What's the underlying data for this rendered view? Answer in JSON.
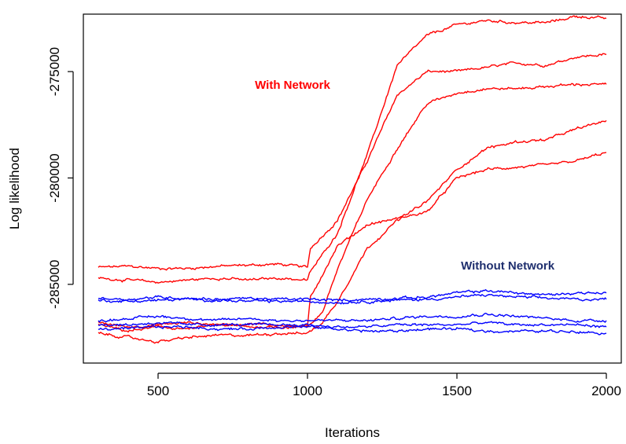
{
  "chart_data": {
    "type": "line",
    "title": "",
    "xlabel": "Iterations",
    "ylabel": "Log likelihood",
    "xlim": [
      250,
      2050
    ],
    "ylim": [
      -288700,
      -272300
    ],
    "x_ticks": [
      500,
      1000,
      1500,
      2000
    ],
    "x_tick_labels": [
      "500",
      "1000",
      "1500",
      "2000"
    ],
    "y_ticks": [
      -285000,
      -280000,
      -275000
    ],
    "y_tick_labels": [
      "-285000",
      "-280000",
      "-275000"
    ],
    "grid": false,
    "annotations": [
      {
        "text": "With Network",
        "x": 950,
        "y": -275800,
        "color": "#ff0000"
      },
      {
        "text": "Without Network",
        "x": 1670,
        "y": -284300,
        "color": "#1f2f6e"
      }
    ],
    "series": [
      {
        "group": "with-network",
        "color": "#ff0000",
        "x": [
          300,
          400,
          500,
          600,
          700,
          800,
          900,
          1000,
          1010,
          1100,
          1200,
          1300,
          1400,
          1500,
          1600,
          1700,
          1800,
          1900,
          2000
        ],
        "y": [
          -284200,
          -284150,
          -284250,
          -284250,
          -284150,
          -284100,
          -284050,
          -284200,
          -283300,
          -282000,
          -279200,
          -276100,
          -275000,
          -275000,
          -274800,
          -274600,
          -274700,
          -274300,
          -274200
        ]
      },
      {
        "group": "with-network",
        "color": "#ff0000",
        "x": [
          300,
          400,
          500,
          600,
          700,
          800,
          900,
          1000,
          1010,
          1100,
          1200,
          1300,
          1400,
          1500,
          1600,
          1700,
          1800,
          1900,
          2000
        ],
        "y": [
          -284700,
          -284800,
          -284900,
          -284800,
          -284700,
          -284800,
          -284700,
          -284800,
          -284400,
          -282600,
          -278900,
          -274700,
          -273300,
          -272800,
          -272600,
          -272700,
          -272700,
          -272400,
          -272500
        ]
      },
      {
        "group": "with-network",
        "color": "#ff0000",
        "x": [
          300,
          400,
          500,
          600,
          700,
          800,
          900,
          1000,
          1010,
          1100,
          1200,
          1300,
          1400,
          1500,
          1600,
          1700,
          1800,
          1900,
          2000
        ],
        "y": [
          -286800,
          -287000,
          -286900,
          -286800,
          -286900,
          -286850,
          -286900,
          -287000,
          -285600,
          -283200,
          -282200,
          -281900,
          -281600,
          -280000,
          -279600,
          -279500,
          -279400,
          -279200,
          -278800
        ]
      },
      {
        "group": "with-network",
        "color": "#ff0000",
        "x": [
          300,
          400,
          500,
          600,
          700,
          800,
          900,
          1000,
          1050,
          1100,
          1200,
          1300,
          1400,
          1500,
          1600,
          1700,
          1800,
          1900,
          2000
        ],
        "y": [
          -286900,
          -287200,
          -287000,
          -287100,
          -286900,
          -287000,
          -287000,
          -287000,
          -286300,
          -284300,
          -281000,
          -278600,
          -276500,
          -276000,
          -275800,
          -275800,
          -275700,
          -275600,
          -275600
        ]
      },
      {
        "group": "with-network",
        "color": "#ff0000",
        "x": [
          300,
          400,
          500,
          600,
          700,
          800,
          900,
          1000,
          1050,
          1100,
          1200,
          1300,
          1400,
          1500,
          1600,
          1700,
          1800,
          1900,
          2000
        ],
        "y": [
          -287300,
          -287500,
          -287700,
          -287500,
          -287400,
          -287400,
          -287300,
          -287300,
          -286800,
          -285800,
          -283300,
          -282000,
          -281100,
          -279600,
          -278600,
          -278300,
          -278200,
          -277700,
          -277300
        ]
      },
      {
        "group": "without-network",
        "color": "#0000ff",
        "x": [
          300,
          400,
          500,
          600,
          700,
          800,
          900,
          1000,
          1100,
          1200,
          1300,
          1400,
          1500,
          1600,
          1700,
          1800,
          1900,
          2000
        ],
        "y": [
          -285650,
          -285700,
          -285600,
          -285650,
          -285700,
          -285650,
          -285700,
          -285700,
          -285750,
          -285700,
          -285650,
          -285600,
          -285400,
          -285300,
          -285400,
          -285500,
          -285400,
          -285400
        ]
      },
      {
        "group": "without-network",
        "color": "#0000ff",
        "x": [
          300,
          400,
          500,
          600,
          700,
          800,
          900,
          1000,
          1100,
          1200,
          1300,
          1400,
          1500,
          1600,
          1700,
          1800,
          1900,
          2000
        ],
        "y": [
          -285750,
          -285800,
          -285750,
          -285700,
          -285750,
          -285800,
          -285800,
          -285800,
          -285850,
          -285800,
          -285750,
          -285700,
          -285600,
          -285500,
          -285600,
          -285650,
          -285700,
          -285700
        ]
      },
      {
        "group": "without-network",
        "color": "#0000ff",
        "x": [
          300,
          400,
          500,
          600,
          700,
          800,
          900,
          1000,
          1100,
          1200,
          1300,
          1400,
          1500,
          1600,
          1700,
          1800,
          1900,
          2000
        ],
        "y": [
          -286700,
          -286600,
          -286500,
          -286600,
          -286700,
          -286600,
          -286700,
          -286700,
          -286700,
          -286700,
          -286600,
          -286500,
          -286500,
          -286400,
          -286500,
          -286600,
          -286700,
          -286700
        ]
      },
      {
        "group": "without-network",
        "color": "#0000ff",
        "x": [
          300,
          400,
          500,
          600,
          700,
          800,
          900,
          1000,
          1100,
          1200,
          1300,
          1400,
          1500,
          1600,
          1700,
          1800,
          1900,
          2000
        ],
        "y": [
          -286900,
          -286900,
          -286800,
          -286900,
          -286900,
          -286900,
          -286900,
          -286900,
          -287000,
          -287000,
          -286900,
          -286900,
          -286900,
          -286800,
          -286900,
          -286900,
          -286900,
          -287000
        ]
      },
      {
        "group": "without-network",
        "color": "#0000ff",
        "x": [
          300,
          400,
          500,
          600,
          700,
          800,
          900,
          1000,
          1100,
          1200,
          1300,
          1400,
          1500,
          1600,
          1700,
          1800,
          1900,
          2000
        ],
        "y": [
          -287100,
          -287100,
          -287000,
          -287000,
          -287100,
          -287100,
          -287000,
          -287000,
          -287100,
          -287200,
          -287200,
          -287100,
          -287100,
          -287200,
          -287200,
          -287200,
          -287200,
          -287300
        ]
      }
    ]
  }
}
